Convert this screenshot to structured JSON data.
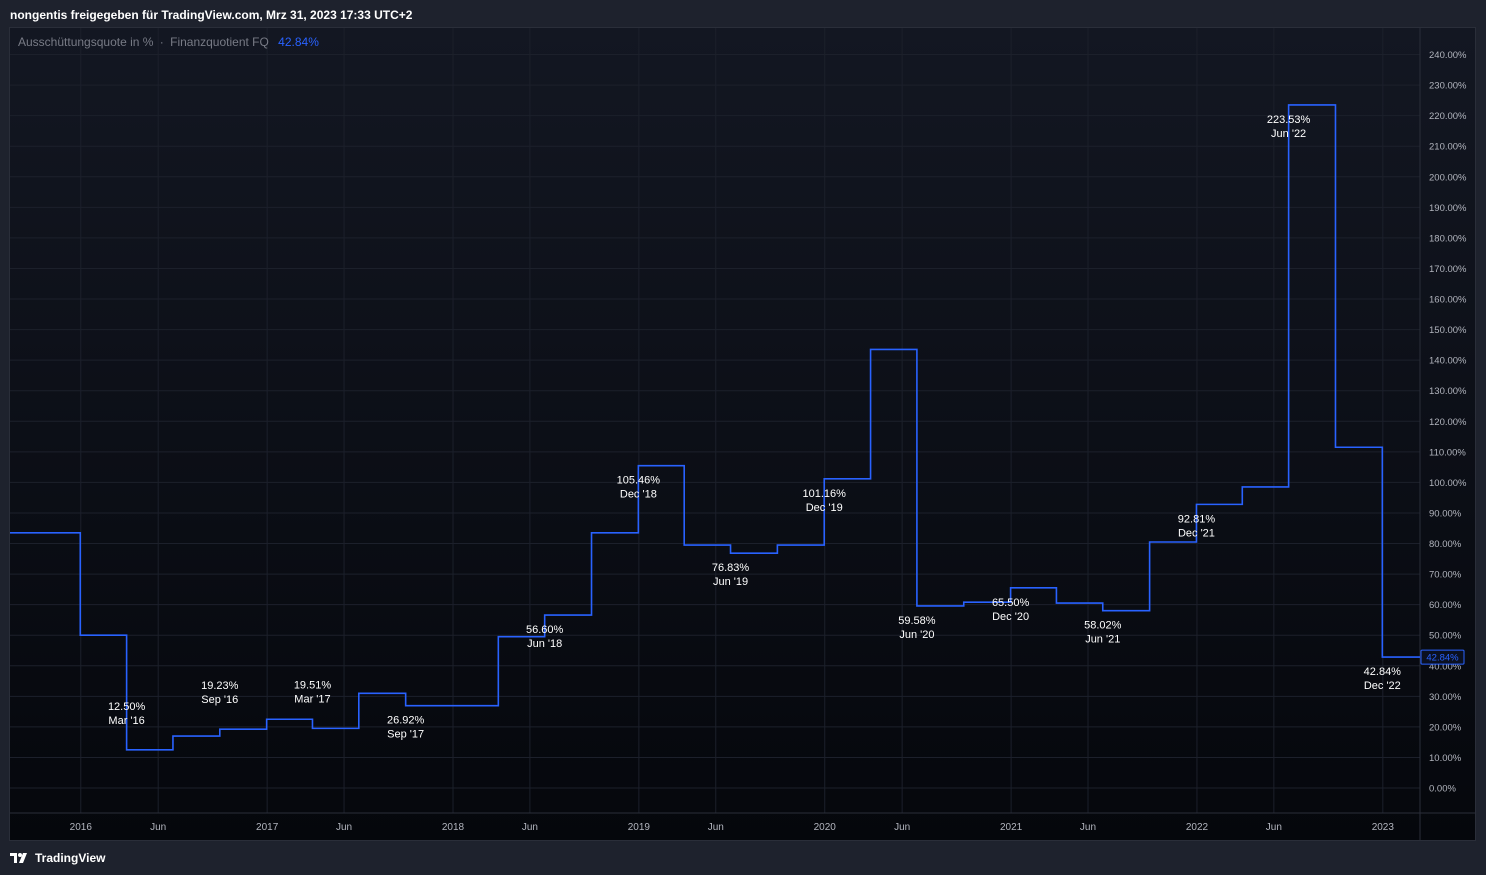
{
  "header": {
    "title": "nongentis freigegeben für TradingView.com, Mrz 31, 2023 17:33 UTC+2"
  },
  "legend": {
    "label": "Ausschüttungsquote in %",
    "separator": "·",
    "period": "Finanzquotient FQ",
    "value": "42.84%"
  },
  "footer": {
    "brand": "TradingView"
  },
  "colors": {
    "line": "#2962ff",
    "text": "#ffffff",
    "axis_text": "#b2b5be",
    "grid": "#1c202b",
    "badge_bg": "#2962ff"
  },
  "chart_data": {
    "type": "line",
    "step": true,
    "ylim": [
      0,
      240
    ],
    "y_ticks": [
      "0.00%",
      "10.00%",
      "20.00%",
      "30.00%",
      "40.00%",
      "50.00%",
      "60.00%",
      "70.00%",
      "80.00%",
      "90.00%",
      "100.00%",
      "110.00%",
      "120.00%",
      "130.00%",
      "140.00%",
      "150.00%",
      "160.00%",
      "170.00%",
      "180.00%",
      "190.00%",
      "200.00%",
      "210.00%",
      "220.00%",
      "230.00%",
      "240.00%"
    ],
    "x_ticks": [
      {
        "label": "2016",
        "date": "2016-01-01"
      },
      {
        "label": "Jun",
        "date": "2016-06-01"
      },
      {
        "label": "2017",
        "date": "2017-01-01"
      },
      {
        "label": "Jun",
        "date": "2017-06-01"
      },
      {
        "label": "2018",
        "date": "2018-01-01"
      },
      {
        "label": "Jun",
        "date": "2018-06-01"
      },
      {
        "label": "2019",
        "date": "2019-01-01"
      },
      {
        "label": "Jun",
        "date": "2019-06-01"
      },
      {
        "label": "2020",
        "date": "2020-01-01"
      },
      {
        "label": "Jun",
        "date": "2020-06-01"
      },
      {
        "label": "2021",
        "date": "2021-01-01"
      },
      {
        "label": "Jun",
        "date": "2021-06-01"
      },
      {
        "label": "2022",
        "date": "2022-01-01"
      },
      {
        "label": "Jun",
        "date": "2022-06-01"
      },
      {
        "label": "2023",
        "date": "2023-01-01"
      }
    ],
    "x_range": [
      "2015-08-15",
      "2023-03-15"
    ],
    "series": [
      {
        "points": [
          {
            "date": "2015-09-30",
            "value": 83.5
          },
          {
            "date": "2015-12-31",
            "value": 50.0
          },
          {
            "date": "2016-03-31",
            "value": 12.5
          },
          {
            "date": "2016-06-30",
            "value": 17.0
          },
          {
            "date": "2016-09-30",
            "value": 19.23
          },
          {
            "date": "2016-12-31",
            "value": 22.5
          },
          {
            "date": "2017-03-31",
            "value": 19.51
          },
          {
            "date": "2017-06-30",
            "value": 31.0
          },
          {
            "date": "2017-09-30",
            "value": 26.92
          },
          {
            "date": "2017-12-31",
            "value": 26.92
          },
          {
            "date": "2018-03-31",
            "value": 49.5
          },
          {
            "date": "2018-06-30",
            "value": 56.6
          },
          {
            "date": "2018-09-30",
            "value": 83.5
          },
          {
            "date": "2018-12-31",
            "value": 105.46
          },
          {
            "date": "2019-03-31",
            "value": 79.5
          },
          {
            "date": "2019-06-30",
            "value": 76.83
          },
          {
            "date": "2019-09-30",
            "value": 79.5
          },
          {
            "date": "2019-12-31",
            "value": 101.16
          },
          {
            "date": "2020-03-31",
            "value": 143.5
          },
          {
            "date": "2020-06-30",
            "value": 59.58
          },
          {
            "date": "2020-09-30",
            "value": 60.8
          },
          {
            "date": "2020-12-31",
            "value": 65.5
          },
          {
            "date": "2021-03-31",
            "value": 60.5
          },
          {
            "date": "2021-06-30",
            "value": 58.02
          },
          {
            "date": "2021-09-30",
            "value": 80.5
          },
          {
            "date": "2021-12-31",
            "value": 92.81
          },
          {
            "date": "2022-03-31",
            "value": 98.5
          },
          {
            "date": "2022-06-30",
            "value": 223.53
          },
          {
            "date": "2022-09-30",
            "value": 111.5
          },
          {
            "date": "2022-12-31",
            "value": 42.84
          }
        ]
      }
    ],
    "annotations": [
      {
        "value_text": "12.50%",
        "period": "Mar '16",
        "date": "2016-03-31",
        "value": 12.5,
        "place": "above"
      },
      {
        "value_text": "19.23%",
        "period": "Sep '16",
        "date": "2016-09-30",
        "value": 19.23,
        "place": "above"
      },
      {
        "value_text": "19.51%",
        "period": "Mar '17",
        "date": "2017-03-31",
        "value": 19.51,
        "place": "above"
      },
      {
        "value_text": "26.92%",
        "period": "Sep '17",
        "date": "2017-09-30",
        "value": 26.92,
        "place": "below"
      },
      {
        "value_text": "56.60%",
        "period": "Jun '18",
        "date": "2018-06-30",
        "value": 56.6,
        "place": "below"
      },
      {
        "value_text": "105.46%",
        "period": "Dec '18",
        "date": "2018-12-31",
        "value": 105.46,
        "place": "below"
      },
      {
        "value_text": "76.83%",
        "period": "Jun '19",
        "date": "2019-06-30",
        "value": 76.83,
        "place": "below"
      },
      {
        "value_text": "101.16%",
        "period": "Dec '19",
        "date": "2019-12-31",
        "value": 101.16,
        "place": "below"
      },
      {
        "value_text": "59.58%",
        "period": "Jun '20",
        "date": "2020-06-30",
        "value": 59.58,
        "place": "below"
      },
      {
        "value_text": "65.50%",
        "period": "Dec '20",
        "date": "2020-12-31",
        "value": 65.5,
        "place": "below"
      },
      {
        "value_text": "58.02%",
        "period": "Jun '21",
        "date": "2021-06-30",
        "value": 58.02,
        "place": "below"
      },
      {
        "value_text": "92.81%",
        "period": "Dec '21",
        "date": "2021-12-31",
        "value": 92.81,
        "place": "below"
      },
      {
        "value_text": "223.53%",
        "period": "Jun '22",
        "date": "2022-06-30",
        "value": 223.53,
        "place": "below"
      },
      {
        "value_text": "42.84%",
        "period": "Dec '22",
        "date": "2022-12-31",
        "value": 42.84,
        "place": "below"
      }
    ],
    "last_value_label": "42.84%",
    "grid": true,
    "legend_position": "top-left"
  }
}
